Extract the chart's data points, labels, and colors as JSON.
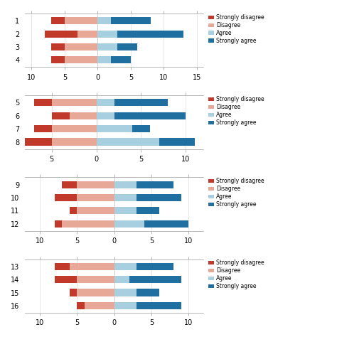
{
  "panels": [
    {
      "questions": [
        1,
        2,
        3,
        4
      ],
      "xlim": [
        -11,
        16
      ],
      "xticks": [
        -10,
        -5,
        0,
        5,
        10,
        15
      ],
      "xticklabels": [
        "10",
        "5",
        "0",
        "5",
        "10",
        "15"
      ],
      "data": [
        {
          "strongly_disagree": 2,
          "disagree": 5,
          "agree": 2,
          "strongly_agree": 6
        },
        {
          "strongly_disagree": 5,
          "disagree": 3,
          "agree": 3,
          "strongly_agree": 10
        },
        {
          "strongly_disagree": 2,
          "disagree": 5,
          "agree": 3,
          "strongly_agree": 3
        },
        {
          "strongly_disagree": 2,
          "disagree": 5,
          "agree": 2,
          "strongly_agree": 3
        }
      ]
    },
    {
      "questions": [
        5,
        6,
        7,
        8
      ],
      "xlim": [
        -8,
        12
      ],
      "xticks": [
        -5,
        0,
        5,
        10
      ],
      "xticklabels": [
        "5",
        "0",
        "5",
        "10"
      ],
      "data": [
        {
          "strongly_disagree": 2,
          "disagree": 5,
          "agree": 2,
          "strongly_agree": 6
        },
        {
          "strongly_disagree": 2,
          "disagree": 3,
          "agree": 2,
          "strongly_agree": 8
        },
        {
          "strongly_disagree": 2,
          "disagree": 5,
          "agree": 4,
          "strongly_agree": 2
        },
        {
          "strongly_disagree": 3,
          "disagree": 5,
          "agree": 7,
          "strongly_agree": 4
        }
      ]
    },
    {
      "questions": [
        9,
        10,
        11,
        12
      ],
      "xlim": [
        -12,
        12
      ],
      "xticks": [
        -10,
        -5,
        0,
        5,
        10
      ],
      "xticklabels": [
        "10",
        "5",
        "0",
        "5",
        "10"
      ],
      "data": [
        {
          "strongly_disagree": 2,
          "disagree": 5,
          "agree": 3,
          "strongly_agree": 5
        },
        {
          "strongly_disagree": 3,
          "disagree": 5,
          "agree": 3,
          "strongly_agree": 6
        },
        {
          "strongly_disagree": 1,
          "disagree": 5,
          "agree": 3,
          "strongly_agree": 3
        },
        {
          "strongly_disagree": 1,
          "disagree": 7,
          "agree": 4,
          "strongly_agree": 6
        }
      ]
    },
    {
      "questions": [
        13,
        14,
        15,
        16
      ],
      "xlim": [
        -12,
        12
      ],
      "xticks": [
        -10,
        -5,
        0,
        5,
        10
      ],
      "xticklabels": [
        "10",
        "5",
        "0",
        "5",
        "10"
      ],
      "data": [
        {
          "strongly_disagree": 2,
          "disagree": 6,
          "agree": 3,
          "strongly_agree": 5
        },
        {
          "strongly_disagree": 3,
          "disagree": 5,
          "agree": 2,
          "strongly_agree": 7
        },
        {
          "strongly_disagree": 1,
          "disagree": 5,
          "agree": 3,
          "strongly_agree": 3
        },
        {
          "strongly_disagree": 1,
          "disagree": 4,
          "agree": 3,
          "strongly_agree": 6
        }
      ]
    }
  ],
  "colors": {
    "strongly_disagree": "#c0392b",
    "disagree": "#e8a898",
    "agree": "#a8cfe0",
    "strongly_agree": "#1f6fa0"
  },
  "legend_labels": [
    "Strongly disagree",
    "Disagree",
    "Agree",
    "Strongly agree"
  ],
  "legend_colors": [
    "#c0392b",
    "#e8a898",
    "#a8cfe0",
    "#1f6fa0"
  ],
  "bar_height": 0.55
}
